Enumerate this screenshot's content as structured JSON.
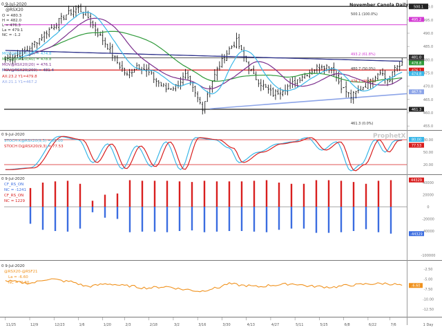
{
  "colors": {
    "candles": "#000000",
    "ma_cyan": "#3ab7e8",
    "ma_green": "#2f9a3a",
    "ma_purple": "#7a2d8c",
    "ma_navy": "#2b2f8a",
    "trend_blue": "#8ca4e8",
    "red_line": "#d81e1e",
    "magenta_line": "#d338d3",
    "stoch_k": "#3ab7e8",
    "stoch_d": "#d81e1e",
    "cot_red": "#d81e1e",
    "cot_blue": "#3a6ce0",
    "spread": "#f0921e",
    "gray_line": "#9a9a9a",
    "y_badge_colors": [
      "#3ab7e8",
      "#2f9a3a",
      "#d81e1e",
      "#7a2d8c",
      "#2b2f8a",
      "#8ca4e8"
    ]
  },
  "panel1": {
    "header": [
      "0 9-Jul-2020",
      "@RSX20"
    ],
    "ohlc": [
      "O = 480.3",
      "H = 482.0",
      "L = 476.3",
      "La = 479.1",
      "NC = -1.2"
    ],
    "ma_legend": [
      "MOV@RSX20(10) = 474.8",
      "MOV@RSX20(40) = 478.8",
      "MOV@RSX20(20) = 476.1",
      "MOV@RSX20(200) = 481.4"
    ],
    "trend_legend": [
      "AX:23.2  Y1=479.8",
      "AX:21.1  Y1=467.2"
    ],
    "title": "November Canola Daily",
    "fib_labels": [
      "500.1 (100.0%)",
      "493.2 (61.8%)",
      "480.7 (50.0%)",
      "476.1 (38.2%)",
      "461.3 (0.0%)"
    ],
    "watermark": "ProphetX",
    "y_ticks": [
      "500.0",
      "495.0",
      "490.0",
      "485.0",
      "480.0",
      "475.0",
      "470.0",
      "465.0",
      "460.0",
      "455.0"
    ],
    "y_badges": [
      "495.2",
      "481.0",
      "479.1",
      "478.8",
      "476.1",
      "474.8",
      "467.9",
      "461.3"
    ],
    "y_badge_top": "500.1"
  },
  "panel2": {
    "header": "0 9-Jul-2020",
    "legend": [
      "STOCH K@RSX20(9,3) = 80.00",
      "STOCH D@RSX20(9,3) = 77.53"
    ],
    "y_ticks": [
      "80.00",
      "50.00",
      "20.00"
    ],
    "y_badges": [
      "80.00",
      "77.53"
    ]
  },
  "panel3": {
    "header": "0 9-Jul-2020",
    "legend": [
      "CF_RS_ON",
      "NC = -1241",
      "CF_RS_ON",
      "NC = 1229"
    ],
    "y_ticks": [
      "40000",
      "20000",
      "0",
      "-20000",
      "-40000",
      "-100000"
    ],
    "y_badges": [
      "44329",
      "-44329"
    ]
  },
  "panel4": {
    "header": "0 9-Jul-2020",
    "legend": [
      "@RSX20-@RSF21",
      "La = -6.60",
      "NC = -0.30"
    ],
    "y_ticks": [
      "-2.50",
      "-5.00",
      "-7.50",
      "-10.00",
      "-12.50"
    ],
    "y_badge": "-6.60"
  },
  "x_axis": {
    "labels": [
      "11/25",
      "12/9",
      "12/23",
      "1/6",
      "1/20",
      "2/3",
      "2/18",
      "3/2",
      "3/16",
      "3/30",
      "4/13",
      "4/27",
      "5/11",
      "5/25",
      "6/8",
      "6/22",
      "7/6"
    ],
    "unit_label": "1 Day"
  },
  "chart_data": [
    {
      "type": "candlestick",
      "title": "November Canola Daily",
      "ylim": [
        455,
        502
      ],
      "series": [
        {
          "name": "MOV@RSX20(10)"
        },
        {
          "name": "MOV@RSX20(40)"
        },
        {
          "name": "MOV@RSX20(20)"
        },
        {
          "name": "MOV@RSX20(200)"
        }
      ],
      "horizontal_levels": [
        500.1,
        493.2,
        480.7,
        476.1,
        461.3
      ],
      "last_bar": {
        "open": 480.3,
        "high": 482.0,
        "low": 476.3,
        "last": 479.1,
        "net_change": -1.2
      }
    },
    {
      "type": "line",
      "series": [
        {
          "name": "STOCH K@RSX20(9,3)"
        },
        {
          "name": "STOCH D@RSX20(9,3)"
        }
      ],
      "ylim": [
        0,
        100
      ],
      "reference_lines": [
        80,
        20
      ],
      "last": {
        "k": 80.0,
        "d": 77.53
      }
    },
    {
      "type": "bar",
      "series": [
        {
          "name": "CF_RS_ON",
          "color": "red"
        },
        {
          "name": "CF_RS_ON",
          "color": "blue"
        }
      ],
      "x": [
        "12/10",
        "12/17",
        "12/24",
        "12/31",
        "1/7",
        "1/14",
        "1/21",
        "1/28",
        "2/4",
        "2/11",
        "2/18",
        "2/25",
        "3/3",
        "3/10",
        "3/17",
        "3/24",
        "3/31",
        "4/7",
        "4/14",
        "4/21",
        "4/28",
        "5/5",
        "5/12",
        "5/19",
        "5/26",
        "6/2",
        "6/9",
        "6/16",
        "6/23",
        "6/30"
      ],
      "red_values": [
        31000,
        40000,
        42000,
        43000,
        38000,
        10000,
        20000,
        22000,
        44000,
        43000,
        43000,
        43000,
        42000,
        41000,
        43000,
        42000,
        42000,
        42000,
        43000,
        44000,
        40000,
        38000,
        38000,
        44000,
        44000,
        43000,
        41000,
        38000,
        43000,
        44000
      ],
      "blue_values": [
        -28000,
        -38000,
        -40000,
        -41000,
        -36000,
        -9000,
        -18000,
        -20000,
        -42000,
        -41000,
        -41000,
        -42000,
        -40000,
        -39000,
        -42000,
        -41000,
        -40000,
        -40000,
        -41000,
        -42000,
        -38000,
        -36000,
        -36000,
        -43000,
        -43000,
        -42000,
        -40000,
        -37000,
        -42000,
        -44329
      ]
    },
    {
      "type": "line",
      "series": [
        {
          "name": "@RSX20-@RSF21"
        }
      ],
      "ylim": [
        -14,
        -1
      ],
      "last": -6.6,
      "net_change": -0.3
    }
  ]
}
